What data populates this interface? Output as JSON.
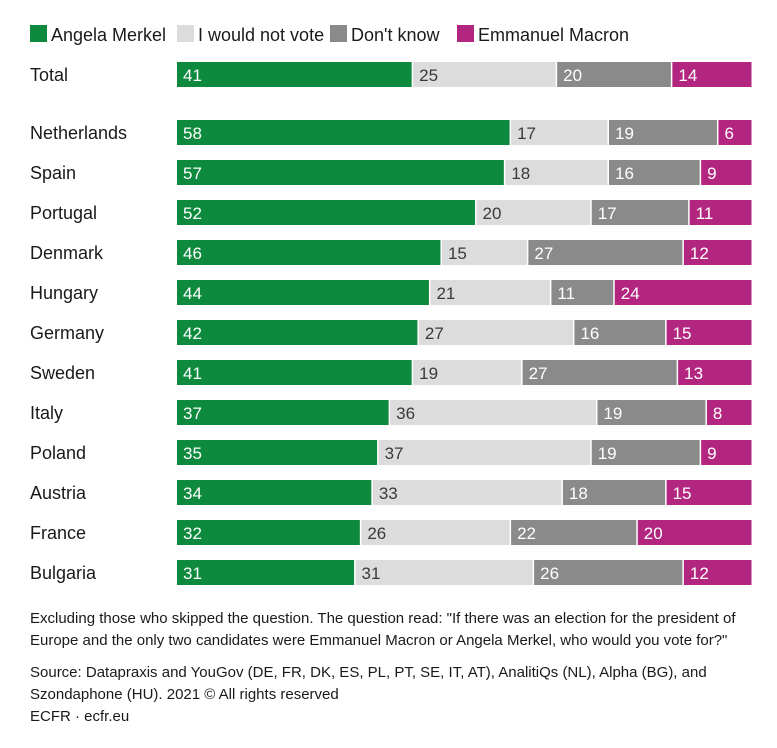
{
  "chart_data": {
    "type": "bar",
    "orientation": "horizontal",
    "stacked": true,
    "percent_total": 100,
    "categories": [
      "Total",
      "Netherlands",
      "Spain",
      "Portugal",
      "Denmark",
      "Hungary",
      "Germany",
      "Sweden",
      "Italy",
      "Poland",
      "Austria",
      "France",
      "Bulgaria"
    ],
    "series": [
      {
        "name": "Angela Merkel",
        "color": "#0e8a3e",
        "text_color": "#ffffff",
        "values": [
          41,
          58,
          57,
          52,
          46,
          44,
          42,
          41,
          37,
          35,
          34,
          32,
          31
        ]
      },
      {
        "name": "I would not vote",
        "color": "#dcdcdc",
        "text_color": "#3a3a3a",
        "values": [
          25,
          17,
          18,
          20,
          15,
          21,
          27,
          19,
          36,
          37,
          33,
          26,
          31
        ]
      },
      {
        "name": "Don't know",
        "color": "#8a8a8a",
        "text_color": "#ffffff",
        "values": [
          20,
          19,
          16,
          17,
          27,
          11,
          16,
          27,
          19,
          19,
          18,
          22,
          26
        ]
      },
      {
        "name": "Emmanuel Macron",
        "color": "#b2267f",
        "text_color": "#ffffff",
        "values": [
          14,
          6,
          9,
          11,
          12,
          24,
          15,
          13,
          8,
          9,
          15,
          20,
          12
        ]
      }
    ],
    "legend_position": "top-left",
    "grid": false
  },
  "notes": {
    "note": "Excluding those who skipped the question. The question read: \"If there was an election for the president of Europe and the only two candidates were Emmanuel Macron or Angela Merkel, who would you vote for?\"",
    "source": "Source: Datapraxis and YouGov (DE, FR, DK, ES, PL, PT, SE, IT, AT), AnalitiQs (NL), Alpha (BG), and Szondaphone (HU). 2021 © All rights reserved",
    "credit": "ECFR · ecfr.eu"
  }
}
